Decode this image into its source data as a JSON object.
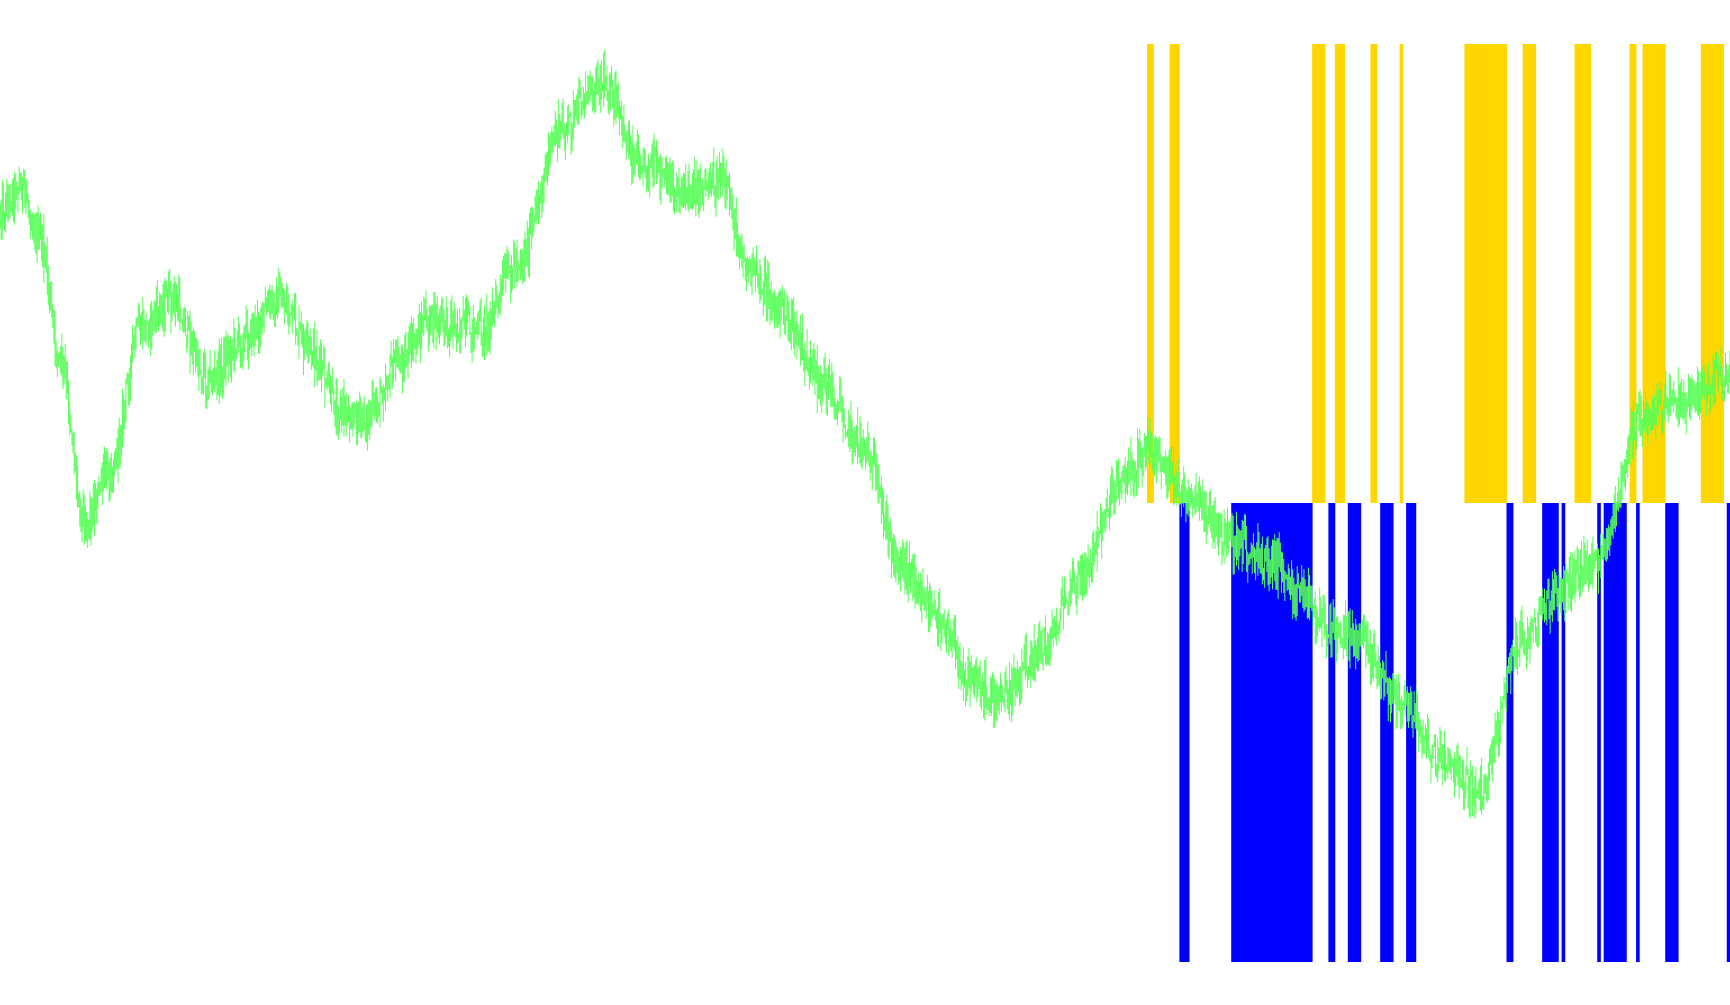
{
  "chart_data": {
    "type": "bar",
    "title": "",
    "xlabel": "",
    "ylabel": "",
    "grid": false,
    "legend": "none",
    "price_series": {
      "color": "#55ff55",
      "segment_count": 1540,
      "ylim": [
        0,
        1005
      ],
      "points": [
        [
          0,
          210
        ],
        [
          20,
          185
        ],
        [
          40,
          240
        ],
        [
          60,
          360
        ],
        [
          85,
          520
        ],
        [
          110,
          470
        ],
        [
          140,
          330
        ],
        [
          170,
          300
        ],
        [
          210,
          380
        ],
        [
          240,
          340
        ],
        [
          280,
          300
        ],
        [
          310,
          350
        ],
        [
          340,
          410
        ],
        [
          365,
          420
        ],
        [
          400,
          360
        ],
        [
          430,
          320
        ],
        [
          480,
          330
        ],
        [
          520,
          260
        ],
        [
          560,
          130
        ],
        [
          600,
          80
        ],
        [
          640,
          160
        ],
        [
          680,
          190
        ],
        [
          720,
          180
        ],
        [
          750,
          270
        ],
        [
          780,
          310
        ],
        [
          820,
          380
        ],
        [
          860,
          440
        ],
        [
          900,
          560
        ],
        [
          940,
          620
        ],
        [
          970,
          680
        ],
        [
          1000,
          700
        ],
        [
          1040,
          650
        ],
        [
          1080,
          580
        ],
        [
          1120,
          480
        ],
        [
          1150,
          450
        ],
        [
          1190,
          500
        ],
        [
          1230,
          540
        ],
        [
          1270,
          560
        ],
        [
          1300,
          590
        ],
        [
          1330,
          630
        ],
        [
          1360,
          640
        ],
        [
          1400,
          700
        ],
        [
          1440,
          760
        ],
        [
          1480,
          790
        ],
        [
          1520,
          640
        ],
        [
          1560,
          590
        ],
        [
          1600,
          560
        ],
        [
          1640,
          420
        ],
        [
          1680,
          400
        ],
        [
          1730,
          370
        ]
      ]
    },
    "signal_bars": {
      "up_color": "#ffd700",
      "down_color": "#0000ff",
      "values": [
        1,
        1,
        0,
        0,
        0,
        0,
        0,
        1,
        1,
        1,
        -1,
        -1,
        -1,
        0,
        0,
        0,
        0,
        0,
        0,
        0,
        0,
        0,
        0,
        0,
        0,
        0,
        -1,
        -1,
        -1,
        -1,
        -1,
        -1,
        -1,
        -1,
        -1,
        -1,
        -1,
        -1,
        -1,
        -1,
        -1,
        -1,
        -1,
        -1,
        -1,
        -1,
        -1,
        -1,
        -1,
        -1,
        -1,
        1,
        1,
        1,
        1,
        0,
        -1,
        -1,
        1,
        1,
        1,
        0,
        -1,
        -1,
        -1,
        -1,
        0,
        0,
        0,
        1,
        1,
        0,
        -1,
        -1,
        -1,
        -1,
        0,
        0,
        1,
        0,
        -1,
        -1,
        -1,
        0,
        0,
        0,
        0,
        0,
        0,
        0,
        0,
        0,
        0,
        0,
        0,
        0,
        0,
        0,
        1,
        1,
        1,
        1,
        1,
        1,
        1,
        1,
        1,
        1,
        1,
        1,
        1,
        -1,
        -1,
        0,
        0,
        0,
        1,
        1,
        1,
        1,
        0,
        0,
        -1,
        -1,
        -1,
        -1,
        -1,
        0,
        -1,
        0,
        0,
        0,
        1,
        1,
        1,
        1,
        1,
        0,
        0,
        -1,
        0,
        -1,
        -1,
        -1,
        -1,
        -1,
        -1,
        -1,
        0,
        1,
        1,
        -1,
        0,
        1,
        1,
        1,
        1,
        1,
        1,
        1,
        -1,
        -1,
        -1,
        -1,
        0,
        0,
        0,
        0,
        0,
        0,
        0,
        1,
        1,
        1,
        1,
        1,
        1,
        1,
        0,
        -1
      ],
      "ylim": [
        -1,
        1
      ]
    }
  }
}
